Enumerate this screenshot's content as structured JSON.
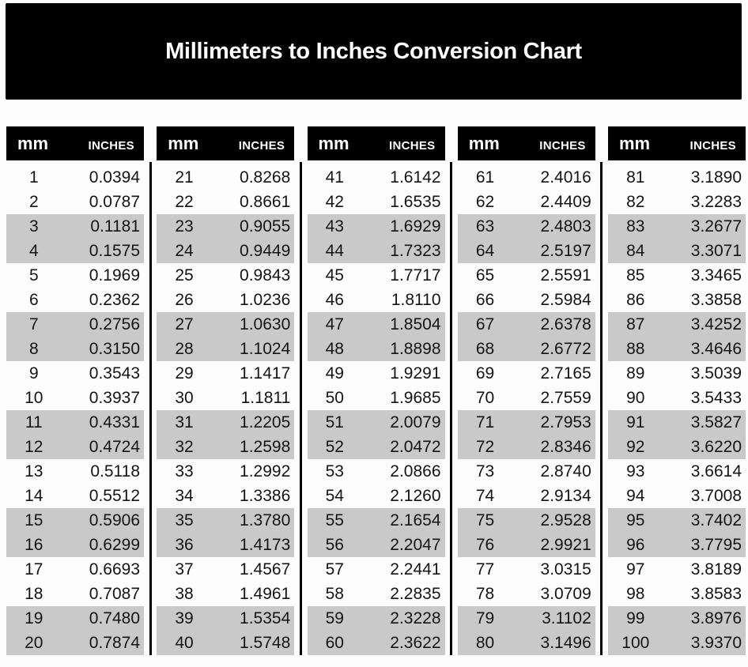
{
  "page": {
    "title": "Millimeters to Inches Conversion Chart"
  },
  "table_header": {
    "mm_label": "mm",
    "inches_label": "Inches"
  },
  "colors": {
    "banner_bg": "#000000",
    "header_bg": "#000000",
    "header_text": "#ffffff",
    "row_shade": "#c9c9c9",
    "text": "#141414",
    "divider": "#000000",
    "page_bg": "#fdfdfd"
  },
  "tables": [
    {
      "rows": [
        {
          "mm": "1",
          "in": "0.0394"
        },
        {
          "mm": "2",
          "in": "0.0787"
        },
        {
          "mm": "3",
          "in": "0.1181"
        },
        {
          "mm": "4",
          "in": "0.1575"
        },
        {
          "mm": "5",
          "in": "0.1969"
        },
        {
          "mm": "6",
          "in": "0.2362"
        },
        {
          "mm": "7",
          "in": "0.2756"
        },
        {
          "mm": "8",
          "in": "0.3150"
        },
        {
          "mm": "9",
          "in": "0.3543"
        },
        {
          "mm": "10",
          "in": "0.3937"
        },
        {
          "mm": "11",
          "in": "0.4331"
        },
        {
          "mm": "12",
          "in": "0.4724"
        },
        {
          "mm": "13",
          "in": "0.5118"
        },
        {
          "mm": "14",
          "in": "0.5512"
        },
        {
          "mm": "15",
          "in": "0.5906"
        },
        {
          "mm": "16",
          "in": "0.6299"
        },
        {
          "mm": "17",
          "in": "0.6693"
        },
        {
          "mm": "18",
          "in": "0.7087"
        },
        {
          "mm": "19",
          "in": "0.7480"
        },
        {
          "mm": "20",
          "in": "0.7874"
        }
      ]
    },
    {
      "rows": [
        {
          "mm": "21",
          "in": "0.8268"
        },
        {
          "mm": "22",
          "in": "0.8661"
        },
        {
          "mm": "23",
          "in": "0.9055"
        },
        {
          "mm": "24",
          "in": "0.9449"
        },
        {
          "mm": "25",
          "in": "0.9843"
        },
        {
          "mm": "26",
          "in": "1.0236"
        },
        {
          "mm": "27",
          "in": "1.0630"
        },
        {
          "mm": "28",
          "in": "1.1024"
        },
        {
          "mm": "29",
          "in": "1.1417"
        },
        {
          "mm": "30",
          "in": "1.1811"
        },
        {
          "mm": "31",
          "in": "1.2205"
        },
        {
          "mm": "32",
          "in": "1.2598"
        },
        {
          "mm": "33",
          "in": "1.2992"
        },
        {
          "mm": "34",
          "in": "1.3386"
        },
        {
          "mm": "35",
          "in": "1.3780"
        },
        {
          "mm": "36",
          "in": "1.4173"
        },
        {
          "mm": "37",
          "in": "1.4567"
        },
        {
          "mm": "38",
          "in": "1.4961"
        },
        {
          "mm": "39",
          "in": "1.5354"
        },
        {
          "mm": "40",
          "in": "1.5748"
        }
      ]
    },
    {
      "rows": [
        {
          "mm": "41",
          "in": "1.6142"
        },
        {
          "mm": "42",
          "in": "1.6535"
        },
        {
          "mm": "43",
          "in": "1.6929"
        },
        {
          "mm": "44",
          "in": "1.7323"
        },
        {
          "mm": "45",
          "in": "1.7717"
        },
        {
          "mm": "46",
          "in": "1.8110"
        },
        {
          "mm": "47",
          "in": "1.8504"
        },
        {
          "mm": "48",
          "in": "1.8898"
        },
        {
          "mm": "49",
          "in": "1.9291"
        },
        {
          "mm": "50",
          "in": "1.9685"
        },
        {
          "mm": "51",
          "in": "2.0079"
        },
        {
          "mm": "52",
          "in": "2.0472"
        },
        {
          "mm": "53",
          "in": "2.0866"
        },
        {
          "mm": "54",
          "in": "2.1260"
        },
        {
          "mm": "55",
          "in": "2.1654"
        },
        {
          "mm": "56",
          "in": "2.2047"
        },
        {
          "mm": "57",
          "in": "2.2441"
        },
        {
          "mm": "58",
          "in": "2.2835"
        },
        {
          "mm": "59",
          "in": "2.3228"
        },
        {
          "mm": "60",
          "in": "2.3622"
        }
      ]
    },
    {
      "rows": [
        {
          "mm": "61",
          "in": "2.4016"
        },
        {
          "mm": "62",
          "in": "2.4409"
        },
        {
          "mm": "63",
          "in": "2.4803"
        },
        {
          "mm": "64",
          "in": "2.5197"
        },
        {
          "mm": "65",
          "in": "2.5591"
        },
        {
          "mm": "66",
          "in": "2.5984"
        },
        {
          "mm": "67",
          "in": "2.6378"
        },
        {
          "mm": "68",
          "in": "2.6772"
        },
        {
          "mm": "69",
          "in": "2.7165"
        },
        {
          "mm": "70",
          "in": "2.7559"
        },
        {
          "mm": "71",
          "in": "2.7953"
        },
        {
          "mm": "72",
          "in": "2.8346"
        },
        {
          "mm": "73",
          "in": "2.8740"
        },
        {
          "mm": "74",
          "in": "2.9134"
        },
        {
          "mm": "75",
          "in": "2.9528"
        },
        {
          "mm": "76",
          "in": "2.9921"
        },
        {
          "mm": "77",
          "in": "3.0315"
        },
        {
          "mm": "78",
          "in": "3.0709"
        },
        {
          "mm": "79",
          "in": "3.1102"
        },
        {
          "mm": "80",
          "in": "3.1496"
        }
      ]
    },
    {
      "rows": [
        {
          "mm": "81",
          "in": "3.1890"
        },
        {
          "mm": "82",
          "in": "3.2283"
        },
        {
          "mm": "83",
          "in": "3.2677"
        },
        {
          "mm": "84",
          "in": "3.3071"
        },
        {
          "mm": "85",
          "in": "3.3465"
        },
        {
          "mm": "86",
          "in": "3.3858"
        },
        {
          "mm": "87",
          "in": "3.4252"
        },
        {
          "mm": "88",
          "in": "3.4646"
        },
        {
          "mm": "89",
          "in": "3.5039"
        },
        {
          "mm": "90",
          "in": "3.5433"
        },
        {
          "mm": "91",
          "in": "3.5827"
        },
        {
          "mm": "92",
          "in": "3.6220"
        },
        {
          "mm": "93",
          "in": "3.6614"
        },
        {
          "mm": "94",
          "in": "3.7008"
        },
        {
          "mm": "95",
          "in": "3.7402"
        },
        {
          "mm": "96",
          "in": "3.7795"
        },
        {
          "mm": "97",
          "in": "3.8189"
        },
        {
          "mm": "98",
          "in": "3.8583"
        },
        {
          "mm": "99",
          "in": "3.8976"
        },
        {
          "mm": "100",
          "in": "3.9370"
        }
      ]
    }
  ]
}
